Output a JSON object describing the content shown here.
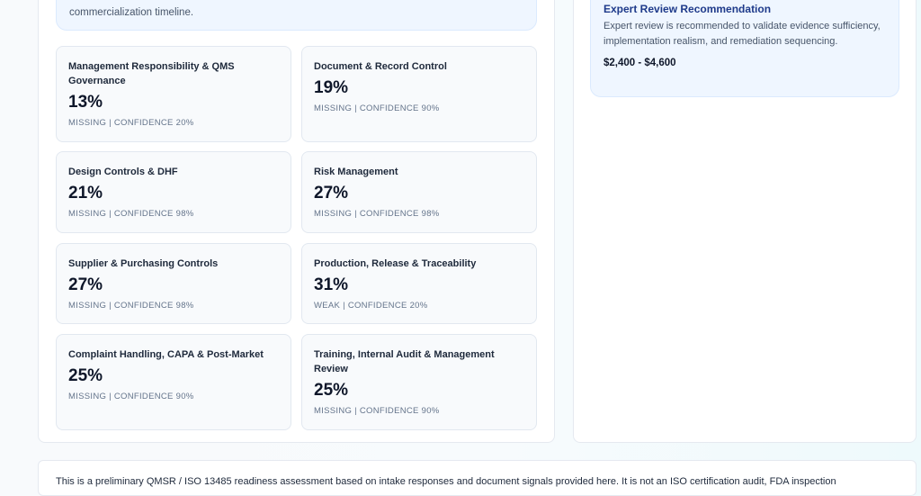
{
  "left_callout": {
    "text": "commercialization timeline."
  },
  "cards": [
    {
      "title": "Management Responsibility & QMS Governance",
      "value": "13%",
      "status": "MISSING | CONFIDENCE 20%"
    },
    {
      "title": "Document & Record Control",
      "value": "19%",
      "status": "MISSING | CONFIDENCE 90%"
    },
    {
      "title": "Design Controls & DHF",
      "value": "21%",
      "status": "MISSING | CONFIDENCE 98%"
    },
    {
      "title": "Risk Management",
      "value": "27%",
      "status": "MISSING | CONFIDENCE 98%"
    },
    {
      "title": "Supplier & Purchasing Controls",
      "value": "27%",
      "status": "MISSING | CONFIDENCE 98%"
    },
    {
      "title": "Production, Release & Traceability",
      "value": "31%",
      "status": "WEAK | CONFIDENCE 20%"
    },
    {
      "title": "Complaint Handling, CAPA & Post-Market",
      "value": "25%",
      "status": "MISSING | CONFIDENCE 90%"
    },
    {
      "title": "Training, Internal Audit & Management Review",
      "value": "25%",
      "status": "MISSING | CONFIDENCE 90%"
    }
  ],
  "expert": {
    "title": "Expert Review Recommendation",
    "text": "Expert review is recommended to validate evidence sufficiency, implementation realism, and remediation sequencing.",
    "price": "$2,400 - $4,600"
  },
  "footer": {
    "text": "This is a preliminary QMSR / ISO 13485 readiness assessment based on intake responses and document signals provided here. It is not an ISO certification audit, FDA inspection"
  }
}
